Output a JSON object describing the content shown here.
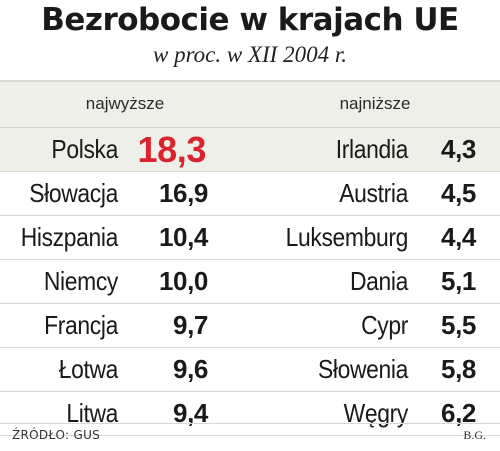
{
  "title": "Bezrobocie w krajach UE",
  "subtitle": "w proc. w XII 2004 r.",
  "columns": {
    "left_label": "najwyższe",
    "right_label": "najniższe"
  },
  "source": "ŹRÓDŁO: GUS",
  "credit": "B.G.",
  "colors": {
    "highlight": "#d9232e",
    "shade": "#efefe9",
    "text": "#1a1a1a"
  },
  "chart_data": {
    "type": "table",
    "title": "Bezrobocie w krajach UE",
    "subtitle": "w proc. w XII 2004 r.",
    "columns": [
      "najwyższe",
      "najniższe"
    ],
    "highest": [
      {
        "country": "Polska",
        "value": "18,3"
      },
      {
        "country": "Słowacja",
        "value": "16,9"
      },
      {
        "country": "Hiszpania",
        "value": "10,4"
      },
      {
        "country": "Niemcy",
        "value": "10,0"
      },
      {
        "country": "Francja",
        "value": "9,7"
      },
      {
        "country": "Łotwa",
        "value": "9,6"
      },
      {
        "country": "Litwa",
        "value": "9,4"
      }
    ],
    "lowest": [
      {
        "country": "Irlandia",
        "value": "4,3"
      },
      {
        "country": "Austria",
        "value": "4,5"
      },
      {
        "country": "Luksemburg",
        "value": "4,4"
      },
      {
        "country": "Dania",
        "value": "5,1"
      },
      {
        "country": "Cypr",
        "value": "5,5"
      },
      {
        "country": "Słowenia",
        "value": "5,8"
      },
      {
        "country": "Węgry",
        "value": "6,2"
      }
    ],
    "highlighted_country": "Polska"
  }
}
